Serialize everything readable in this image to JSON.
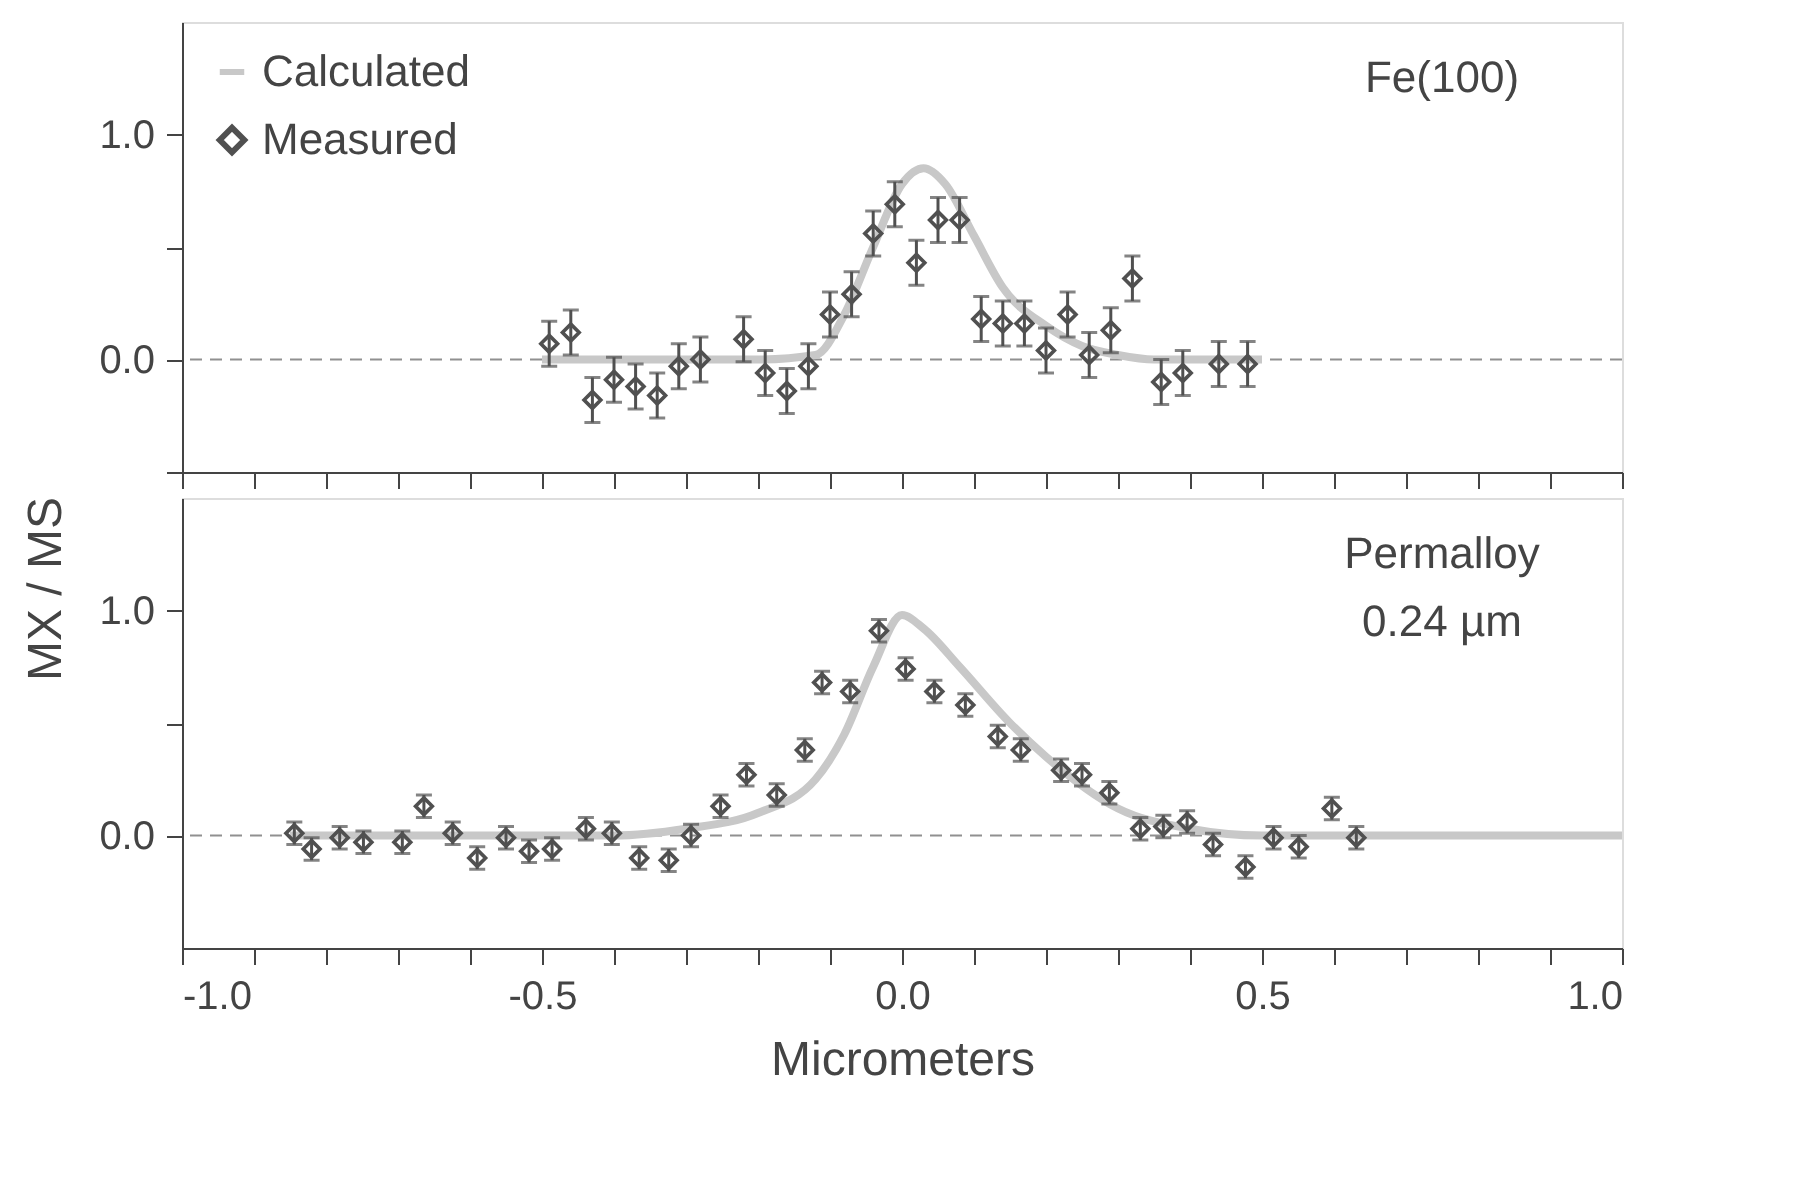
{
  "chart_data": [
    {
      "type": "scatter",
      "xlim": [
        -1.0,
        1.0
      ],
      "ylim": [
        -0.5,
        1.5
      ],
      "xticks": [
        {
          "value": -1.0,
          "label": null
        },
        {
          "value": -0.9,
          "label": null
        },
        {
          "value": -0.8,
          "label": null
        },
        {
          "value": -0.7,
          "label": null
        },
        {
          "value": -0.6,
          "label": null
        },
        {
          "value": -0.5,
          "label": null
        },
        {
          "value": -0.4,
          "label": null
        },
        {
          "value": -0.3,
          "label": null
        },
        {
          "value": -0.2,
          "label": null
        },
        {
          "value": -0.1,
          "label": null
        },
        {
          "value": 0.0,
          "label": null
        },
        {
          "value": 0.1,
          "label": null
        },
        {
          "value": 0.2,
          "label": null
        },
        {
          "value": 0.3,
          "label": null
        },
        {
          "value": 0.4,
          "label": null
        },
        {
          "value": 0.5,
          "label": null
        },
        {
          "value": 0.6,
          "label": null
        },
        {
          "value": 0.7,
          "label": null
        },
        {
          "value": 0.8,
          "label": null
        },
        {
          "value": 0.9,
          "label": null
        },
        {
          "value": 1.0,
          "label": null
        }
      ],
      "yticks": [
        {
          "value": -0.5,
          "label": null
        },
        {
          "value": 0,
          "label": "0.0"
        },
        {
          "value": 0.5,
          "label": null
        },
        {
          "value": 1,
          "label": "1.0"
        }
      ],
      "tick_labels": "y",
      "grid": false,
      "legend": "top left",
      "annotations": [
        "Fe(100)"
      ],
      "ref_lines": [
        {
          "axis": "y",
          "value": 0,
          "color": "#909090",
          "line_style": "dashed"
        }
      ],
      "series": [
        {
          "name": "Calculated",
          "type": "line",
          "color": "#c8c8c8",
          "line_style": "solid",
          "x": [
            -0.5,
            -0.2,
            -0.12,
            -0.08,
            -0.04,
            0.0,
            0.03,
            0.06,
            0.1,
            0.14,
            0.2,
            0.25,
            0.3,
            0.35,
            0.5
          ],
          "values": [
            0,
            0,
            0.02,
            0.2,
            0.5,
            0.78,
            0.85,
            0.78,
            0.55,
            0.32,
            0.15,
            0.06,
            0.02,
            0,
            0
          ]
        },
        {
          "name": "Measured",
          "color": "#505050",
          "marker": "diamond",
          "x": [
            -0.49,
            -0.46,
            -0.43,
            -0.4,
            -0.37,
            -0.34,
            -0.31,
            -0.28,
            -0.22,
            -0.19,
            -0.16,
            -0.13,
            -0.1,
            -0.07,
            -0.04,
            -0.01,
            0.02,
            0.05,
            0.08,
            0.11,
            0.14,
            0.17,
            0.2,
            0.23,
            0.26,
            0.29,
            0.32,
            0.36,
            0.39,
            0.44,
            0.48
          ],
          "values": [
            0.07,
            0.12,
            -0.18,
            -0.09,
            -0.12,
            -0.16,
            -0.03,
            0.0,
            0.09,
            -0.06,
            -0.14,
            -0.03,
            0.2,
            0.29,
            0.56,
            0.69,
            0.43,
            0.62,
            0.62,
            0.18,
            0.16,
            0.16,
            0.04,
            0.2,
            0.02,
            0.13,
            0.36,
            -0.1,
            -0.06,
            -0.02,
            -0.02
          ],
          "errors": [
            0.1,
            0.1,
            0.1,
            0.1,
            0.1,
            0.1,
            0.1,
            0.1,
            0.1,
            0.1,
            0.1,
            0.1,
            0.1,
            0.1,
            0.1,
            0.1,
            0.1,
            0.1,
            0.1,
            0.1,
            0.1,
            0.1,
            0.1,
            0.1,
            0.1,
            0.1,
            0.1,
            0.1,
            0.1,
            0.1,
            0.1
          ]
        }
      ]
    },
    {
      "type": "scatter",
      "xlim": [
        -1.0,
        1.0
      ],
      "ylim": [
        -0.5,
        1.5
      ],
      "xticks": [
        {
          "value": -1.0,
          "label": "-1.0"
        },
        {
          "value": -0.9,
          "label": null
        },
        {
          "value": -0.8,
          "label": null
        },
        {
          "value": -0.7,
          "label": null
        },
        {
          "value": -0.6,
          "label": null
        },
        {
          "value": -0.5,
          "label": "-0.5"
        },
        {
          "value": -0.4,
          "label": null
        },
        {
          "value": -0.3,
          "label": null
        },
        {
          "value": -0.2,
          "label": null
        },
        {
          "value": -0.1,
          "label": null
        },
        {
          "value": 0.0,
          "label": "0.0"
        },
        {
          "value": 0.1,
          "label": null
        },
        {
          "value": 0.2,
          "label": null
        },
        {
          "value": 0.3,
          "label": null
        },
        {
          "value": 0.4,
          "label": null
        },
        {
          "value": 0.5,
          "label": "0.5"
        },
        {
          "value": 0.6,
          "label": null
        },
        {
          "value": 0.7,
          "label": null
        },
        {
          "value": 0.8,
          "label": null
        },
        {
          "value": 0.9,
          "label": null
        },
        {
          "value": 1.0,
          "label": "1.0"
        }
      ],
      "yticks": [
        {
          "value": 0,
          "label": "0.0"
        },
        {
          "value": 0.5,
          "label": null
        },
        {
          "value": 1,
          "label": "1.0"
        }
      ],
      "xlabel": "Micrometers",
      "ylabel": "MX / MS",
      "grid": false,
      "annotations": [
        "Permalloy",
        "0.24 µm"
      ],
      "ref_lines": [
        {
          "axis": "y",
          "value": 0,
          "color": "#909090",
          "line_style": "dashed"
        }
      ],
      "series": [
        {
          "type": "line",
          "color": "#c8c8c8",
          "line_style": "solid",
          "x": [
            -0.85,
            -0.4,
            -0.3,
            -0.2,
            -0.12,
            -0.08,
            -0.04,
            0.0,
            0.03,
            0.08,
            0.15,
            0.2,
            0.3,
            0.4,
            0.5,
            1.0
          ],
          "values": [
            0,
            0,
            0.03,
            0.1,
            0.25,
            0.45,
            0.75,
            0.98,
            0.92,
            0.75,
            0.5,
            0.35,
            0.12,
            0.03,
            0,
            0
          ]
        },
        {
          "color": "#505050",
          "marker": "diamond",
          "x": [
            -0.844,
            -0.82,
            -0.781,
            -0.748,
            -0.694,
            -0.664,
            -0.624,
            -0.59,
            -0.55,
            -0.518,
            -0.486,
            -0.439,
            -0.403,
            -0.365,
            -0.324,
            -0.293,
            -0.252,
            -0.216,
            -0.174,
            -0.135,
            -0.111,
            -0.072,
            -0.032,
            0.005,
            0.045,
            0.088,
            0.133,
            0.165,
            0.221,
            0.25,
            0.288,
            0.331,
            0.363,
            0.396,
            0.432,
            0.477,
            0.516,
            0.551,
            0.597,
            0.631
          ],
          "values": [
            0.01,
            -0.06,
            -0.01,
            -0.03,
            -0.03,
            0.13,
            0.01,
            -0.1,
            -0.01,
            -0.07,
            -0.06,
            0.03,
            0.01,
            -0.1,
            -0.11,
            0.0,
            0.13,
            0.27,
            0.18,
            0.38,
            0.68,
            0.64,
            0.91,
            0.74,
            0.64,
            0.58,
            0.44,
            0.38,
            0.29,
            0.27,
            0.19,
            0.03,
            0.04,
            0.06,
            -0.04,
            -0.14,
            -0.01,
            -0.05,
            0.12,
            -0.01
          ],
          "errors": [
            0.05,
            0.05,
            0.05,
            0.05,
            0.05,
            0.05,
            0.05,
            0.05,
            0.05,
            0.05,
            0.05,
            0.05,
            0.05,
            0.05,
            0.05,
            0.05,
            0.05,
            0.05,
            0.05,
            0.05,
            0.05,
            0.05,
            0.05,
            0.05,
            0.05,
            0.05,
            0.05,
            0.05,
            0.05,
            0.05,
            0.05,
            0.05,
            0.05,
            0.05,
            0.05,
            0.05,
            0.05,
            0.05,
            0.05,
            0.05
          ]
        }
      ]
    }
  ]
}
